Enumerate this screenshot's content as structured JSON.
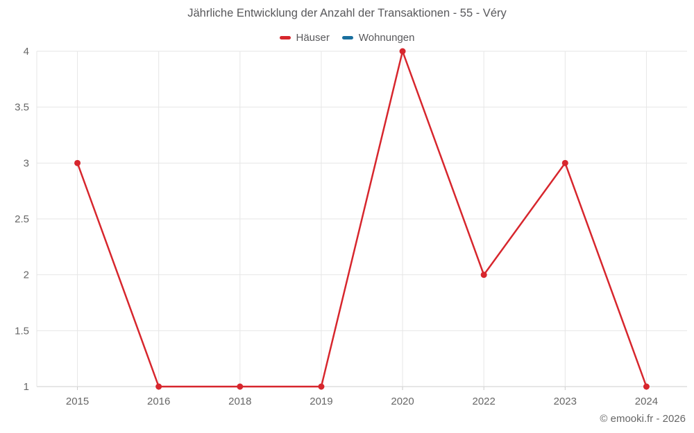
{
  "title": "Jährliche Entwicklung der Anzahl der Transaktionen - 55 - Véry",
  "footer": "© emooki.fr - 2026",
  "legend": [
    {
      "label": "Häuser",
      "color": "#d7262d"
    },
    {
      "label": "Wohnungen",
      "color": "#1a6f9e"
    }
  ],
  "colors": {
    "series_red": "#d7262d",
    "series_blue": "#1a6f9e",
    "grid": "#e6e6e6",
    "axis_line": "#cccccc",
    "axis_text": "#666666",
    "title_text": "#58585b"
  },
  "chart_data": {
    "type": "line",
    "title": "Jährliche Entwicklung der Anzahl der Transaktionen - 55 - Véry",
    "categories": [
      "2015",
      "2016",
      "2018",
      "2019",
      "2020",
      "2022",
      "2023",
      "2024"
    ],
    "series": [
      {
        "name": "Häuser",
        "color": "#d7262d",
        "values": [
          3,
          1,
          1,
          1,
          4,
          2,
          3,
          1
        ]
      },
      {
        "name": "Wohnungen",
        "color": "#1a6f9e",
        "values": []
      }
    ],
    "xlabel": "",
    "ylabel": "",
    "ylim": [
      1,
      4
    ],
    "yticks": [
      1,
      1.5,
      2,
      2.5,
      3,
      3.5,
      4
    ],
    "grid": true,
    "legend_position": "top"
  }
}
